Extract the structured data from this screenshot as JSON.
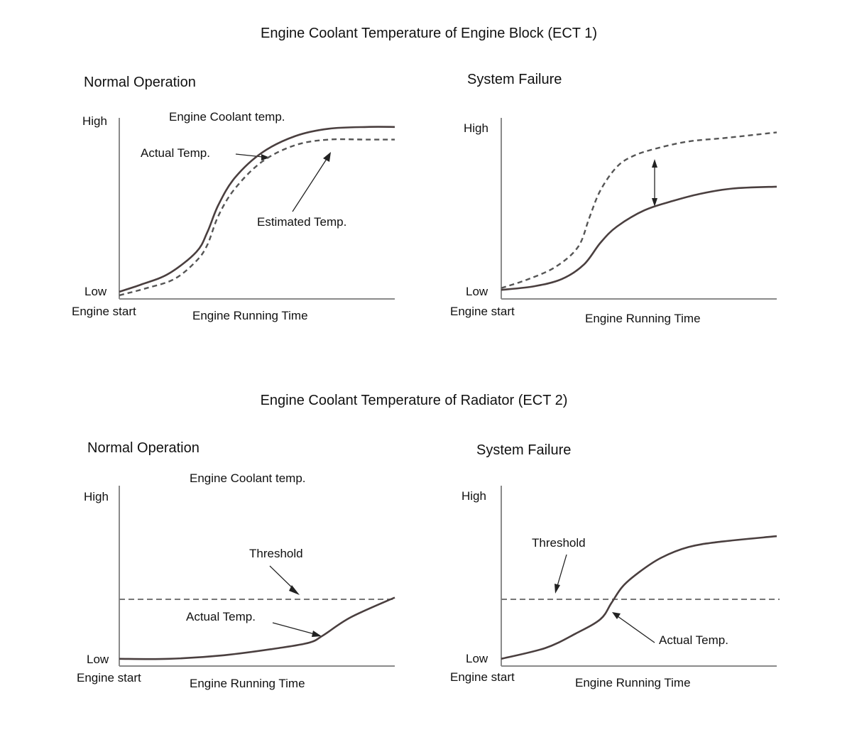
{
  "colors": {
    "actual": "#4a3f3f",
    "estimated": "#555555",
    "threshold": "#777777",
    "axis": "#8a8a8a"
  },
  "sections": {
    "ect1": {
      "title": "Engine Coolant Temperature of Engine Block (ECT 1)"
    },
    "ect2": {
      "title": "Engine Coolant Temperature of Radiator (ECT 2)"
    }
  },
  "chart_data": [
    {
      "type": "line",
      "title": "Normal Operation",
      "subtitle": "Engine Coolant temp.",
      "xlabel": "Engine Running Time",
      "x_start_label": "Engine start",
      "y_high_label": "High",
      "y_low_label": "Low",
      "xlim": [
        0,
        100
      ],
      "ylim": [
        0,
        100
      ],
      "series": [
        {
          "name": "Actual Temp.",
          "style": "solid",
          "x": [
            0,
            8,
            18,
            28,
            32,
            36,
            42,
            52,
            64,
            76,
            90,
            100
          ],
          "y": [
            4,
            8,
            14,
            26,
            37,
            52,
            67,
            81,
            90,
            94,
            95,
            95
          ]
        },
        {
          "name": "Estimated Temp.",
          "style": "dashed",
          "x": [
            0,
            10,
            20,
            28,
            32,
            36,
            42,
            52,
            64,
            76,
            90,
            100
          ],
          "y": [
            2,
            6,
            11,
            21,
            30,
            46,
            61,
            76,
            85,
            88,
            88,
            88
          ]
        }
      ]
    },
    {
      "type": "line",
      "title": "System Failure",
      "subtitle": "",
      "xlabel": "Engine Running Time",
      "x_start_label": "Engine start",
      "y_high_label": "High",
      "y_low_label": "Low",
      "xlim": [
        0,
        100
      ],
      "ylim": [
        0,
        100
      ],
      "series": [
        {
          "name": "",
          "style": "solid",
          "x": [
            0,
            12,
            22,
            30,
            36,
            42,
            52,
            62,
            72,
            84,
            100
          ],
          "y": [
            5,
            7,
            11,
            19,
            31,
            40,
            49,
            54,
            58,
            61,
            62
          ]
        },
        {
          "name": "",
          "style": "dashed",
          "x": [
            0,
            10,
            20,
            28,
            32,
            36,
            42,
            48,
            56,
            68,
            82,
            100
          ],
          "y": [
            6,
            11,
            18,
            29,
            45,
            60,
            73,
            79,
            83,
            87,
            89,
            92
          ]
        }
      ]
    },
    {
      "type": "line",
      "title": "Normal Operation",
      "subtitle": "Engine Coolant temp.",
      "xlabel": "Engine Running Time",
      "x_start_label": "Engine start",
      "y_high_label": "High",
      "y_low_label": "Low",
      "xlim": [
        0,
        100
      ],
      "ylim": [
        0,
        100
      ],
      "threshold": 37,
      "threshold_label": "Threshold",
      "series": [
        {
          "name": "Actual Temp.",
          "style": "solid",
          "x": [
            0,
            18,
            38,
            58,
            69,
            74,
            84,
            100
          ],
          "y": [
            4,
            4,
            6,
            10,
            13,
            17,
            27,
            38
          ]
        }
      ]
    },
    {
      "type": "line",
      "title": "System Failure",
      "subtitle": "",
      "xlabel": "Engine Running Time",
      "x_start_label": "Engine start",
      "y_high_label": "High",
      "y_low_label": "Low",
      "xlim": [
        0,
        100
      ],
      "ylim": [
        0,
        100
      ],
      "threshold": 37,
      "threshold_label": "Threshold",
      "series": [
        {
          "name": "Actual Temp.",
          "style": "solid",
          "x": [
            0,
            16,
            27,
            36,
            40,
            44,
            50,
            58,
            68,
            80,
            100
          ],
          "y": [
            4,
            10,
            18,
            26,
            35,
            44,
            52,
            60,
            66,
            69,
            72
          ]
        }
      ]
    }
  ]
}
